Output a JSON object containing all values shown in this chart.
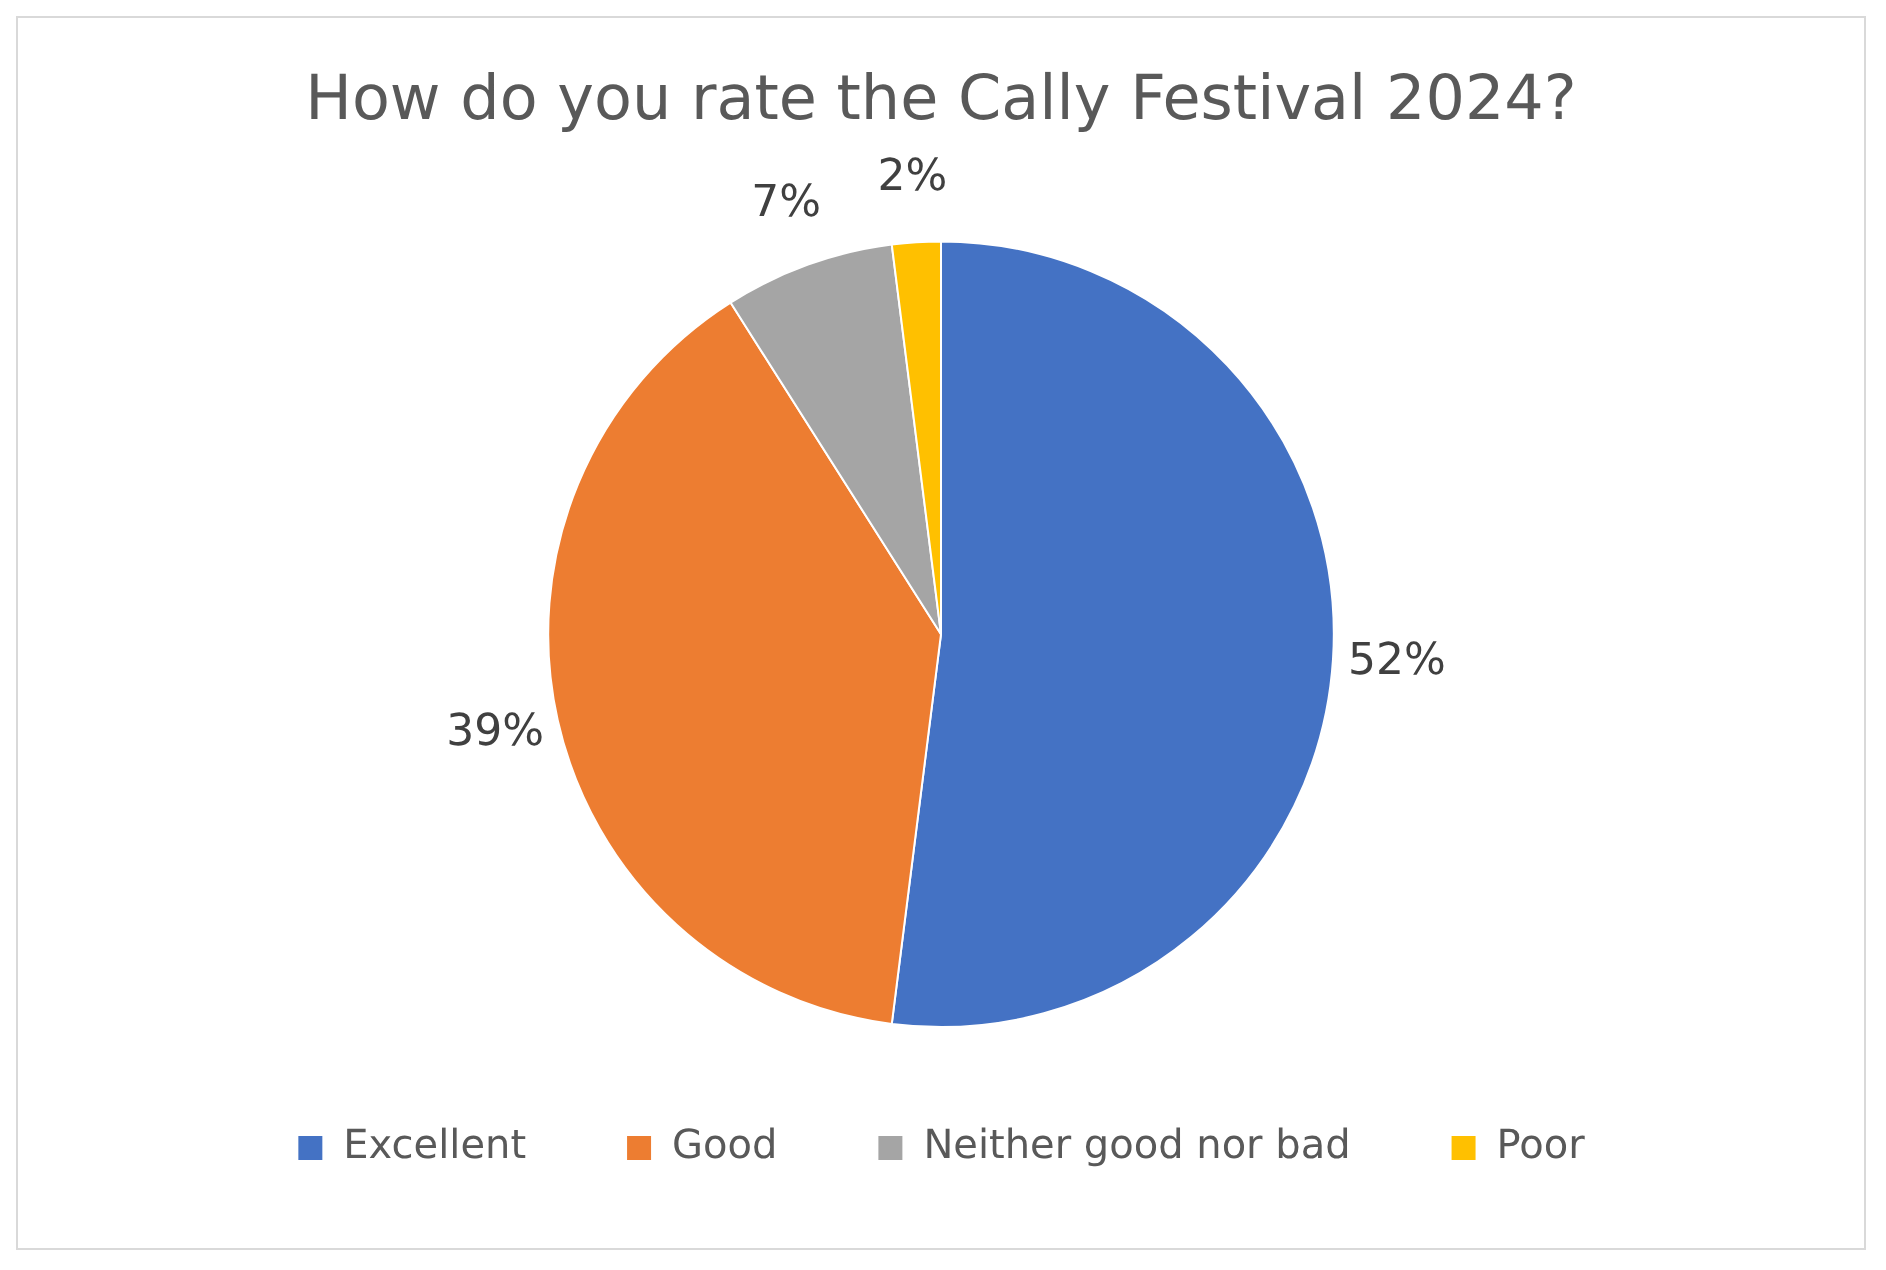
{
  "chart_data": {
    "type": "pie",
    "title": "How do you rate the Cally Festival 2024?",
    "categories": [
      "Excellent",
      "Good",
      "Neither good nor bad",
      "Poor"
    ],
    "values": [
      52,
      39,
      7,
      2
    ],
    "value_labels": [
      "52%",
      "39%",
      "7%",
      "2%"
    ],
    "colors": [
      "#4472c4",
      "#ed7d31",
      "#a5a5a5",
      "#ffc000"
    ],
    "legend": "bottom"
  }
}
